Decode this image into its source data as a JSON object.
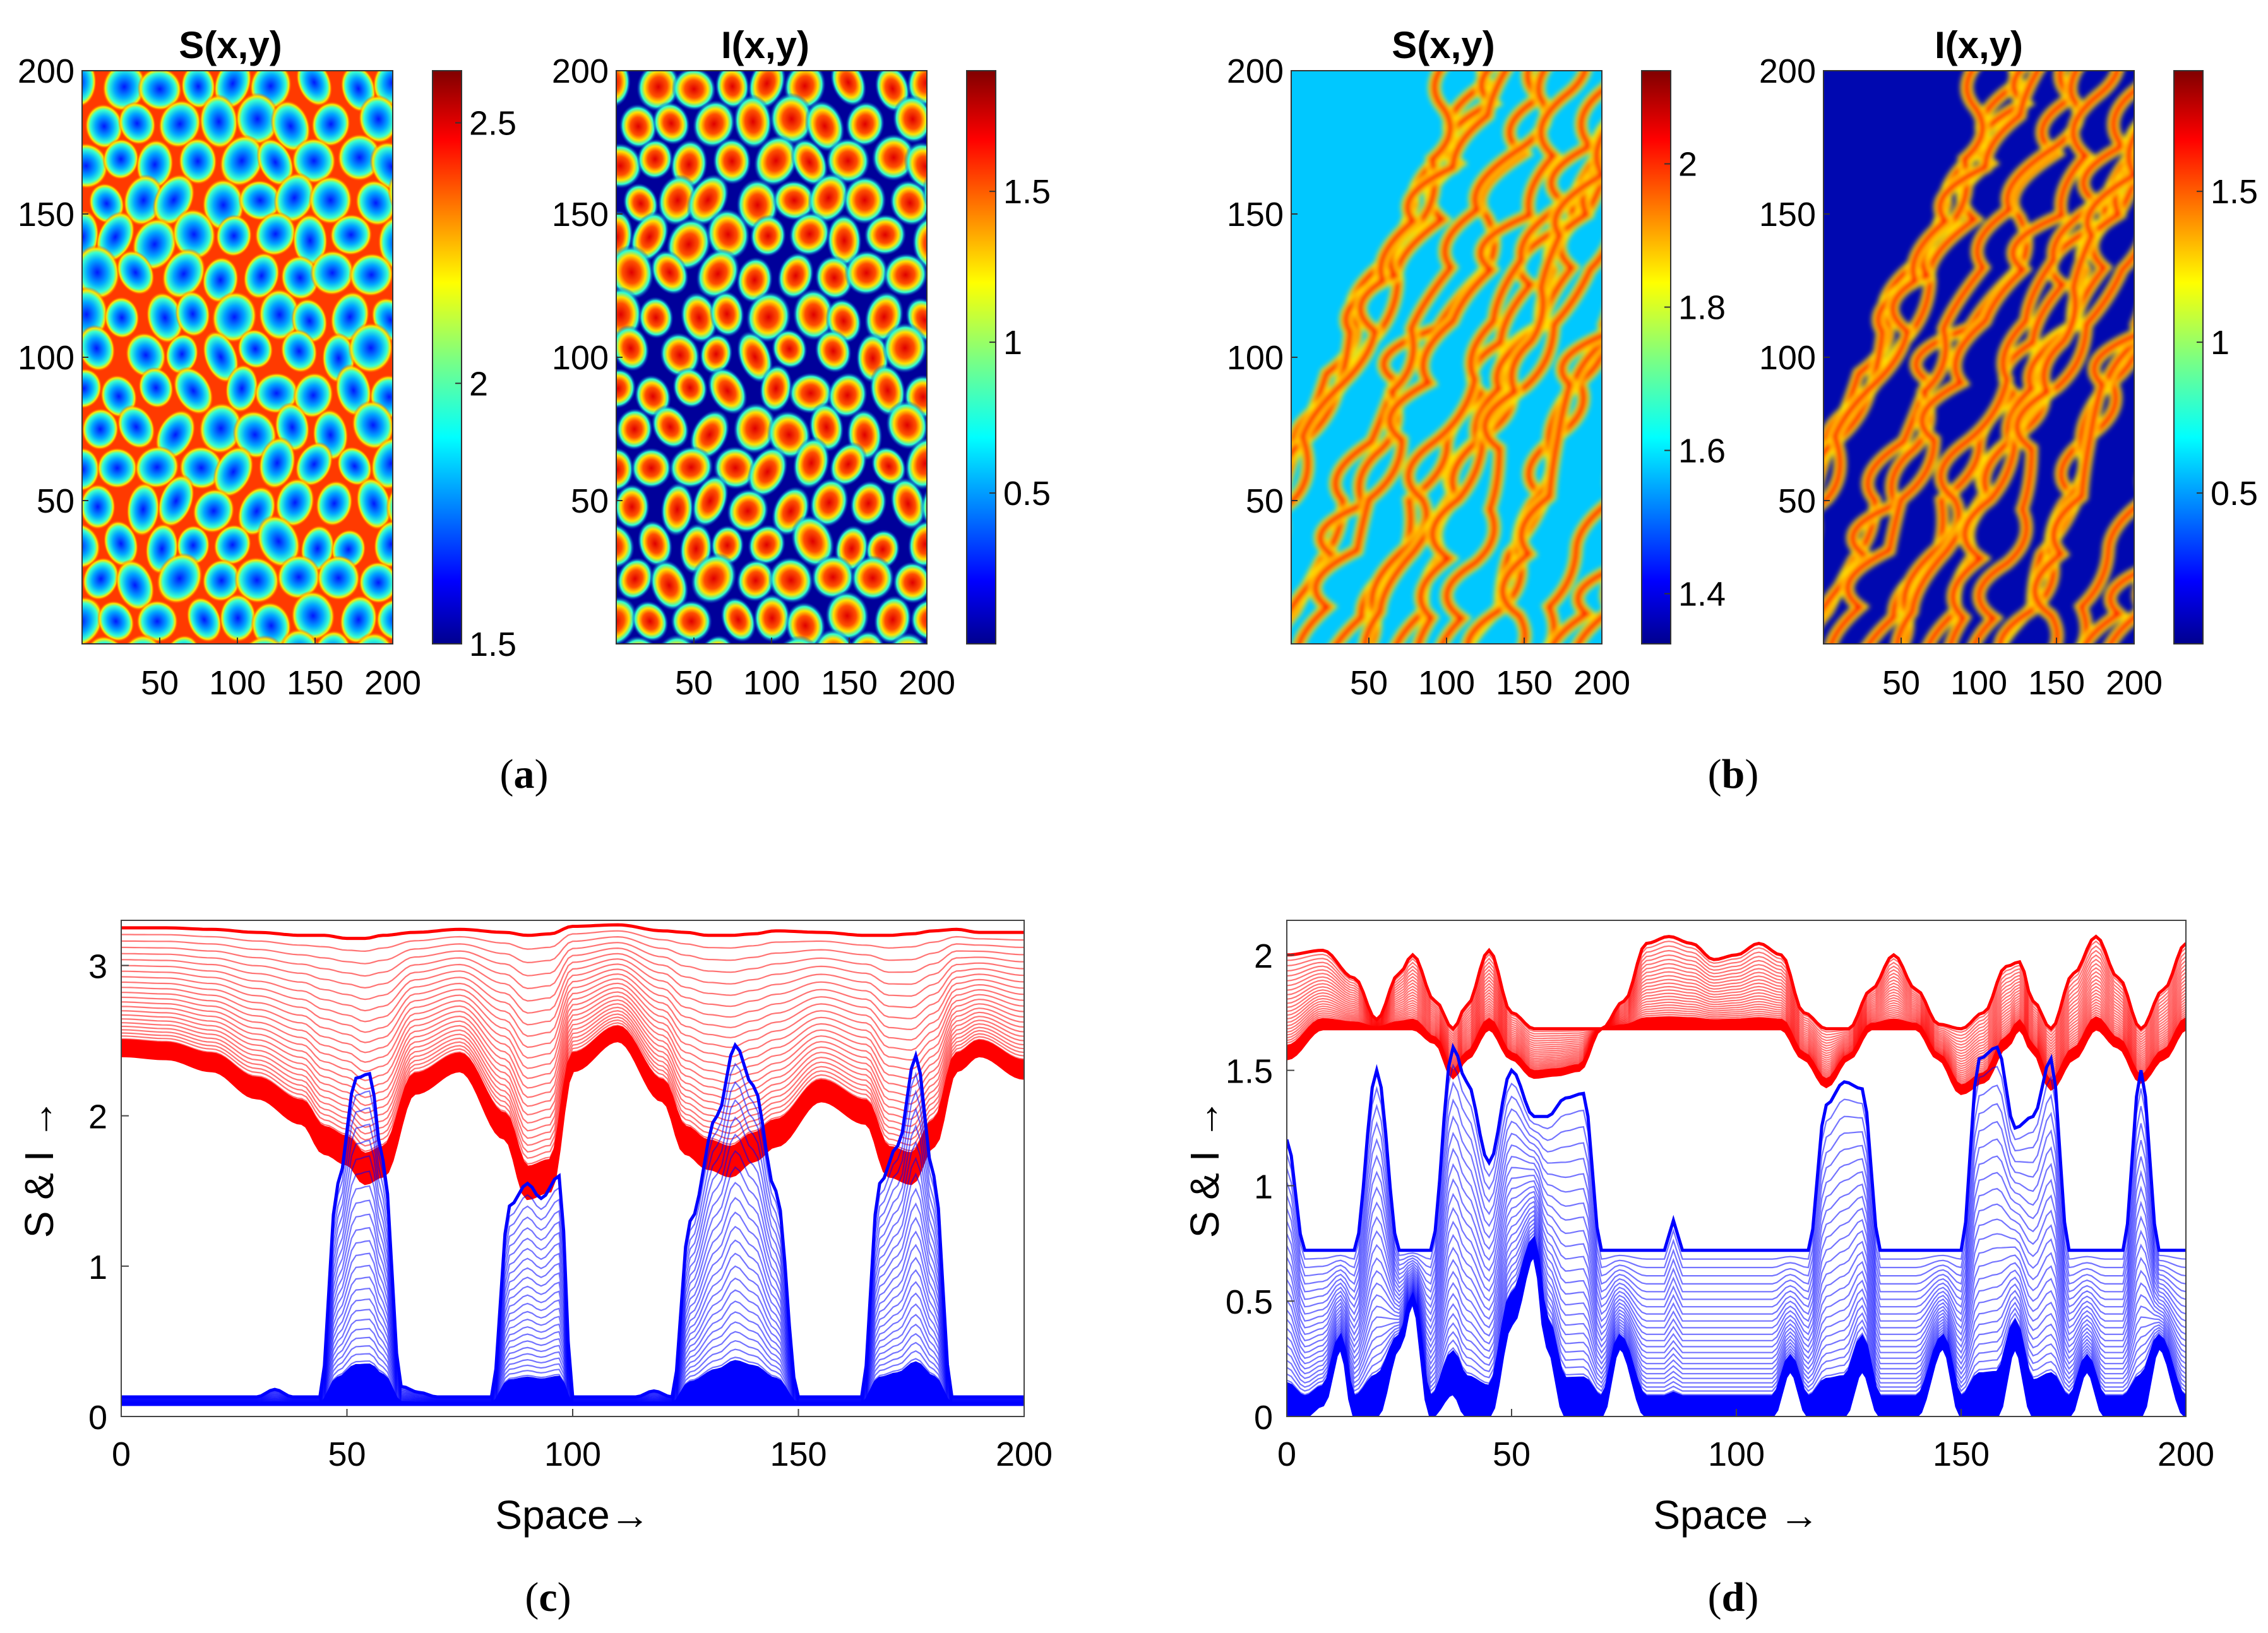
{
  "chart_data": [
    {
      "id": "a-S",
      "type": "heatmap",
      "title": "S(x,y)",
      "pattern": "spots",
      "x_ticks": [
        "50",
        "100",
        "150",
        "200"
      ],
      "y_ticks": [
        "200",
        "150",
        "100",
        "50"
      ],
      "colorbar_ticks": [
        "2.5",
        "2",
        "1.5"
      ],
      "colorbar_range": [
        1.5,
        2.6
      ],
      "colormap": "jet"
    },
    {
      "id": "a-I",
      "type": "heatmap",
      "title": "I(x,y)",
      "pattern": "spots",
      "x_ticks": [
        "50",
        "100",
        "150",
        "200"
      ],
      "y_ticks": [
        "200",
        "150",
        "100",
        "50"
      ],
      "colorbar_ticks": [
        "1.5",
        "1",
        "0.5"
      ],
      "colorbar_range": [
        0,
        1.9
      ],
      "colormap": "jet"
    },
    {
      "id": "b-S",
      "type": "heatmap",
      "title": "S(x,y)",
      "pattern": "stripes",
      "x_ticks": [
        "50",
        "100",
        "150",
        "200"
      ],
      "y_ticks": [
        "200",
        "150",
        "100",
        "50"
      ],
      "colorbar_ticks": [
        "2",
        "1.8",
        "1.6",
        "1.4"
      ],
      "colorbar_range": [
        1.33,
        2.13
      ],
      "colormap": "jet"
    },
    {
      "id": "b-I",
      "type": "heatmap",
      "title": "I(x,y)",
      "pattern": "stripes",
      "x_ticks": [
        "50",
        "100",
        "150",
        "200"
      ],
      "y_ticks": [
        "200",
        "150",
        "100",
        "50"
      ],
      "colorbar_ticks": [
        "1.5",
        "1",
        "0.5"
      ],
      "colorbar_range": [
        0,
        1.9
      ],
      "colormap": "jet"
    },
    {
      "id": "c",
      "type": "line",
      "xlabel": "Space→",
      "ylabel": "S & I →",
      "xlim": [
        0,
        200
      ],
      "ylim": [
        0,
        3.3
      ],
      "x_ticks": [
        "0",
        "50",
        "100",
        "150",
        "200"
      ],
      "y_ticks": [
        "0",
        "1",
        "2",
        "3"
      ],
      "series": [
        {
          "name": "S",
          "color": "#ff0000",
          "x": [
            0,
            10,
            20,
            30,
            40,
            45,
            50,
            54,
            58,
            65,
            75,
            85,
            90,
            95,
            100,
            110,
            120,
            125,
            130,
            135,
            140,
            145,
            155,
            165,
            170,
            175,
            180,
            185,
            190,
            200
          ],
          "lower": [
            2.4,
            2.38,
            2.3,
            2.12,
            1.95,
            1.75,
            1.68,
            1.55,
            1.6,
            2.15,
            2.3,
            1.85,
            1.45,
            1.5,
            2.3,
            2.5,
            2.1,
            1.75,
            1.65,
            1.6,
            1.7,
            1.8,
            2.1,
            1.95,
            1.6,
            1.55,
            1.8,
            2.3,
            2.4,
            2.25
          ],
          "upper": [
            3.25,
            3.25,
            3.24,
            3.22,
            3.2,
            3.2,
            3.18,
            3.18,
            3.2,
            3.22,
            3.24,
            3.22,
            3.2,
            3.21,
            3.26,
            3.27,
            3.23,
            3.22,
            3.2,
            3.2,
            3.21,
            3.23,
            3.22,
            3.2,
            3.2,
            3.21,
            3.23,
            3.24,
            3.22,
            3.22
          ]
        },
        {
          "name": "I",
          "color": "#0000ff",
          "x": [
            0,
            30,
            34,
            38,
            44,
            48,
            52,
            55,
            58,
            62,
            66,
            70,
            82,
            86,
            90,
            93,
            97,
            100,
            114,
            118,
            122,
            126,
            132,
            136,
            140,
            145,
            150,
            164,
            168,
            172,
            176,
            180,
            184,
            200
          ],
          "lower": [
            0.08,
            0.08,
            0.08,
            0.08,
            0.08,
            0.08,
            0.08,
            0.08,
            0.08,
            0.08,
            0.08,
            0.08,
            0.08,
            0.08,
            0.08,
            0.08,
            0.08,
            0.08,
            0.08,
            0.08,
            0.08,
            0.08,
            0.08,
            0.08,
            0.08,
            0.08,
            0.08,
            0.08,
            0.08,
            0.08,
            0.08,
            0.08,
            0.08,
            0.08
          ],
          "upper": [
            0.13,
            0.13,
            0.18,
            0.13,
            0.13,
            1.55,
            2.25,
            2.28,
            1.7,
            0.2,
            0.16,
            0.13,
            0.13,
            1.4,
            1.55,
            1.45,
            1.6,
            0.13,
            0.13,
            0.17,
            0.13,
            1.3,
            2.0,
            2.47,
            2.2,
            1.5,
            0.13,
            0.13,
            1.55,
            1.8,
            2.4,
            1.6,
            0.13,
            0.13
          ]
        }
      ]
    },
    {
      "id": "d",
      "type": "line",
      "xlabel": "Space →",
      "ylabel": "S & I →",
      "xlim": [
        0,
        200
      ],
      "ylim": [
        0,
        2.15
      ],
      "x_ticks": [
        "0",
        "50",
        "100",
        "150",
        "200"
      ],
      "y_ticks": [
        "0",
        "0.5",
        "1",
        "1.5",
        "2"
      ],
      "series": [
        {
          "name": "S",
          "color": "#ff0000",
          "x": [
            0,
            8,
            15,
            20,
            25,
            28,
            33,
            37,
            40,
            45,
            50,
            55,
            60,
            65,
            70,
            75,
            80,
            85,
            90,
            95,
            100,
            105,
            110,
            115,
            120,
            125,
            130,
            135,
            140,
            145,
            150,
            155,
            160,
            163,
            166,
            170,
            175,
            180,
            185,
            190,
            195,
            200
          ],
          "lower": [
            1.55,
            1.68,
            1.68,
            1.68,
            1.68,
            1.68,
            1.62,
            1.47,
            1.55,
            1.68,
            1.55,
            1.47,
            1.48,
            1.5,
            1.68,
            1.68,
            1.68,
            1.68,
            1.68,
            1.68,
            1.68,
            1.68,
            1.68,
            1.55,
            1.43,
            1.55,
            1.68,
            1.68,
            1.68,
            1.55,
            1.4,
            1.45,
            1.6,
            1.68,
            1.58,
            1.42,
            1.55,
            1.68,
            1.6,
            1.45,
            1.55,
            1.68
          ],
          "upper": [
            2.0,
            2.02,
            1.9,
            1.72,
            1.92,
            2.0,
            1.8,
            1.68,
            1.78,
            2.02,
            1.75,
            1.68,
            1.68,
            1.68,
            1.68,
            1.8,
            2.05,
            2.08,
            2.05,
            1.98,
            2.0,
            2.05,
            2.0,
            1.75,
            1.68,
            1.68,
            1.85,
            2.0,
            1.85,
            1.7,
            1.68,
            1.75,
            1.95,
            1.97,
            1.8,
            1.68,
            1.92,
            2.08,
            1.9,
            1.68,
            1.85,
            2.05
          ]
        },
        {
          "name": "I",
          "color": "#0000ff",
          "x": [
            0,
            4,
            8,
            12,
            15,
            20,
            25,
            28,
            32,
            37,
            40,
            45,
            50,
            55,
            58,
            62,
            66,
            70,
            74,
            80,
            84,
            86,
            88,
            92,
            100,
            108,
            112,
            116,
            120,
            124,
            128,
            132,
            136,
            140,
            146,
            150,
            154,
            158,
            162,
            166,
            170,
            174,
            178,
            182,
            186,
            190,
            194,
            200
          ],
          "lower": [
            0.0,
            0.0,
            0.05,
            0.3,
            0.0,
            0.0,
            0.3,
            0.5,
            0.0,
            0.1,
            0.0,
            0.0,
            0.4,
            0.7,
            0.3,
            0.0,
            0.0,
            0.0,
            0.3,
            0.0,
            0.0,
            0.0,
            0.0,
            0.0,
            0.0,
            0.0,
            0.2,
            0.0,
            0.0,
            0.0,
            0.2,
            0.0,
            0.0,
            0.0,
            0.3,
            0.0,
            0.0,
            0.0,
            0.3,
            0.0,
            0.0,
            0.0,
            0.2,
            0.0,
            0.0,
            0.0,
            0.3,
            0.0
          ],
          "upper": [
            1.2,
            0.72,
            0.72,
            0.72,
            0.72,
            1.5,
            0.72,
            0.72,
            0.72,
            1.6,
            1.45,
            1.1,
            1.5,
            1.3,
            1.3,
            1.38,
            1.4,
            0.72,
            0.72,
            0.72,
            0.72,
            0.85,
            0.72,
            0.72,
            0.72,
            0.72,
            0.72,
            0.72,
            1.35,
            1.45,
            1.42,
            0.72,
            0.72,
            0.72,
            0.72,
            0.72,
            1.55,
            1.6,
            1.25,
            1.3,
            1.55,
            0.72,
            0.72,
            0.72,
            0.72,
            1.5,
            0.72,
            0.72
          ]
        }
      ]
    }
  ],
  "captions": {
    "a": "a",
    "b": "b",
    "c": "c",
    "d": "d"
  }
}
